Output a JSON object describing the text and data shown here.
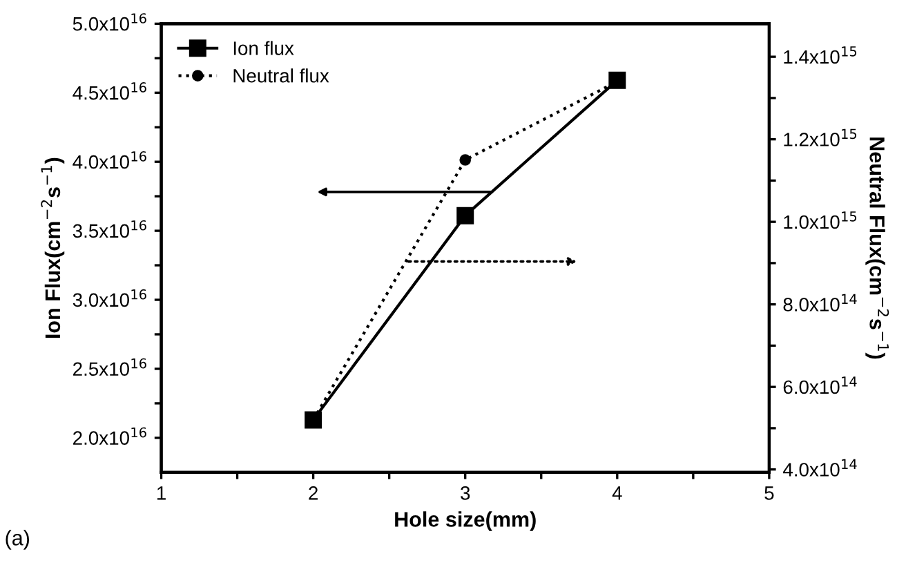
{
  "chart_data": {
    "type": "line",
    "xlabel": "Hole size(mm)",
    "ylabel": "Ion Flux(cm$^{−2}$s$^{−1}$)",
    "y2label": "Neutral Flux(cm$^{−2}$s$^{−1}$)",
    "x": [
      2,
      3,
      4
    ],
    "series": [
      {
        "name": "Ion flux",
        "color": "#000000",
        "values": [
          2.13e+16,
          3.61e+16,
          4.59e+16
        ],
        "marker": "square",
        "line_style": "solid"
      },
      {
        "name": "Neutral flux",
        "color": "#000000",
        "values": [
          520000000000000.0,
          1150000000000000.0,
          1340000000000000.0
        ],
        "marker": "circle",
        "line_style": "dotted",
        "axis": "y2"
      }
    ],
    "xlim": [
      1,
      5
    ],
    "xticks": [
      1,
      {
        "value": 1.5,
        "label": null
      },
      2,
      {
        "value": 2.5,
        "label": null
      },
      3,
      {
        "value": 3.5,
        "label": null
      },
      4,
      {
        "value": 4.5,
        "label": null
      },
      5
    ],
    "ylim": [
      1.75e+16,
      5e+16
    ],
    "yticks": [
      {
        "value": 2e+16,
        "label": "2.0x10$^{16}$"
      },
      {
        "value": 2.25e+16,
        "label": null
      },
      {
        "value": 2.5e+16,
        "label": "2.5x10$^{16}$"
      },
      {
        "value": 2.75e+16,
        "label": null
      },
      {
        "value": 3e+16,
        "label": "3.0x10$^{16}$"
      },
      {
        "value": 3.25e+16,
        "label": null
      },
      {
        "value": 3.5e+16,
        "label": "3.5x10$^{16}$"
      },
      {
        "value": 3.75e+16,
        "label": null
      },
      {
        "value": 4e+16,
        "label": "4.0x10$^{16}$"
      },
      {
        "value": 4.25e+16,
        "label": null
      },
      {
        "value": 4.5e+16,
        "label": "4.5x10$^{16}$"
      },
      {
        "value": 4.75e+16,
        "label": null
      },
      {
        "value": 5e+16,
        "label": "5.0x10$^{16}$"
      }
    ],
    "y2lim": [
      393000000000000.0,
      1480000000000000.0
    ],
    "y2ticks": [
      {
        "value": 400000000000000.0,
        "label": "4.0x10$^{14}$"
      },
      {
        "value": 500000000000000.0,
        "label": null
      },
      {
        "value": 600000000000000.0,
        "label": "6.0x10$^{14}$"
      },
      {
        "value": 700000000000000.0,
        "label": null
      },
      {
        "value": 800000000000000.0,
        "label": "8.0x10$^{14}$"
      },
      {
        "value": 900000000000000.0,
        "label": null
      },
      {
        "value": 1000000000000000.0,
        "label": "1.0x10$^{15}$"
      },
      {
        "value": 1100000000000000.0,
        "label": null
      },
      {
        "value": 1200000000000000.0,
        "label": "1.2x10$^{15}$"
      },
      {
        "value": 1300000000000000.0,
        "label": null
      },
      {
        "value": 1400000000000000.0,
        "label": "1.4x10$^{15}$"
      }
    ],
    "annotations": [
      "(a)"
    ],
    "legend": "top left",
    "grid": false
  }
}
